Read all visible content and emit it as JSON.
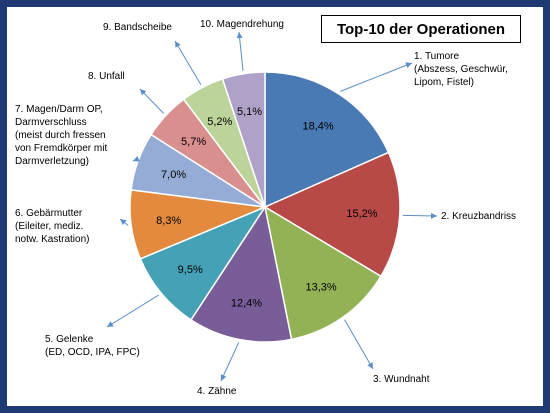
{
  "chart_data": {
    "type": "pie",
    "title": "Top-10 der Operationen",
    "slices": [
      {
        "label_lines": [
          "1. Tumore",
          "(Abszess, Geschwür,",
          "Lipom, Fistel)"
        ],
        "value": 18.4,
        "text": "18,4%",
        "color": "#4a7ab3"
      },
      {
        "label_lines": [
          "2. Kreuzbandriss"
        ],
        "value": 15.2,
        "text": "15,2%",
        "color": "#b74a47"
      },
      {
        "label_lines": [
          "3. Wundnaht"
        ],
        "value": 13.3,
        "text": "13,3%",
        "color": "#93b256"
      },
      {
        "label_lines": [
          "4. Zähne"
        ],
        "value": 12.4,
        "text": "12,4%",
        "color": "#785d98"
      },
      {
        "label_lines": [
          "5. Gelenke",
          "(ED, OCD, IPA, FPC)"
        ],
        "value": 9.5,
        "text": "9,5%",
        "color": "#45a2b6"
      },
      {
        "label_lines": [
          "6. Gebärmutter",
          "(Eileiter, mediz.",
          "notw. Kastration)"
        ],
        "value": 8.3,
        "text": "8,3%",
        "color": "#e48a3f"
      },
      {
        "label_lines": [
          "7. Magen/Darm  OP,",
          "Darmverschluss",
          "(meist durch fressen",
          "von Fremdkörper mit",
          "Darmverletzung)"
        ],
        "value": 7.0,
        "text": "7,0%",
        "color": "#95acd6"
      },
      {
        "label_lines": [
          "8. Unfall"
        ],
        "value": 5.7,
        "text": "5,7%",
        "color": "#d98f8d"
      },
      {
        "label_lines": [
          "9. Bandscheibe"
        ],
        "value": 5.2,
        "text": "5,2%",
        "color": "#bcd39a"
      },
      {
        "label_lines": [
          "10. Magendrehung"
        ],
        "value": 5.1,
        "text": "5,1%",
        "color": "#afa1c7"
      }
    ],
    "start_angle": "12 o'clock",
    "direction": "clockwise",
    "legend": "none",
    "grid": false
  }
}
